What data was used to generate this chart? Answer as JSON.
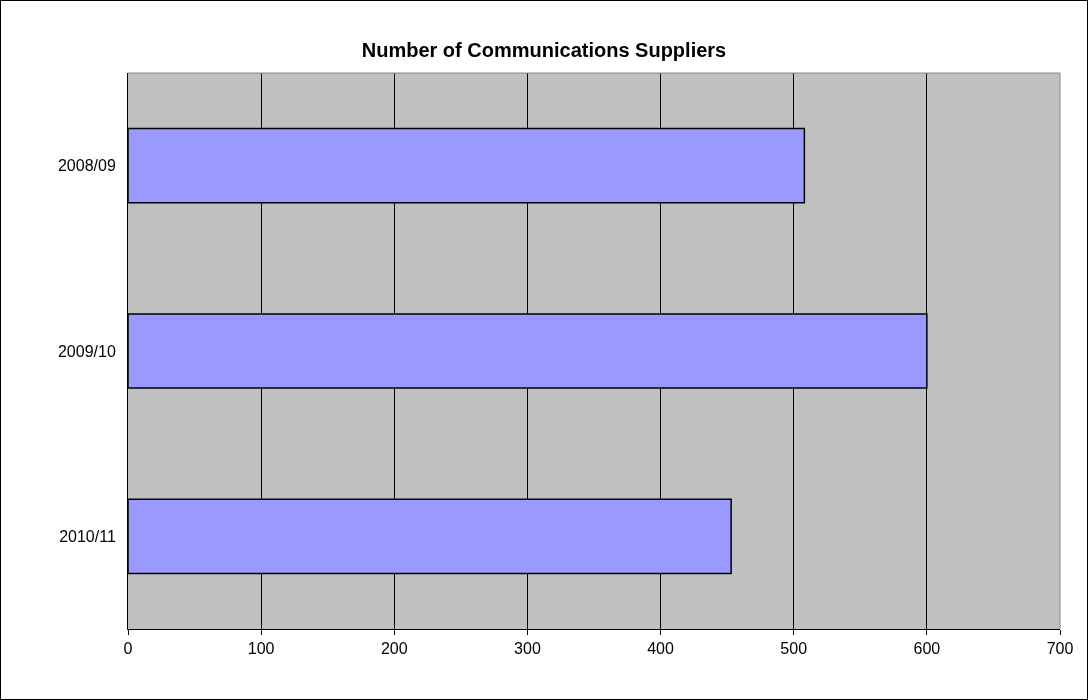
{
  "chart_data": {
    "type": "bar",
    "orientation": "horizontal",
    "title": "Number of Communications Suppliers",
    "categories": [
      "2008/09",
      "2009/10",
      "2010/11"
    ],
    "values": [
      508,
      600,
      453
    ],
    "color": "#9999ff",
    "xlim": [
      0,
      700
    ],
    "xticks": [
      0,
      100,
      200,
      300,
      400,
      500,
      600,
      700
    ],
    "grid": "x"
  }
}
